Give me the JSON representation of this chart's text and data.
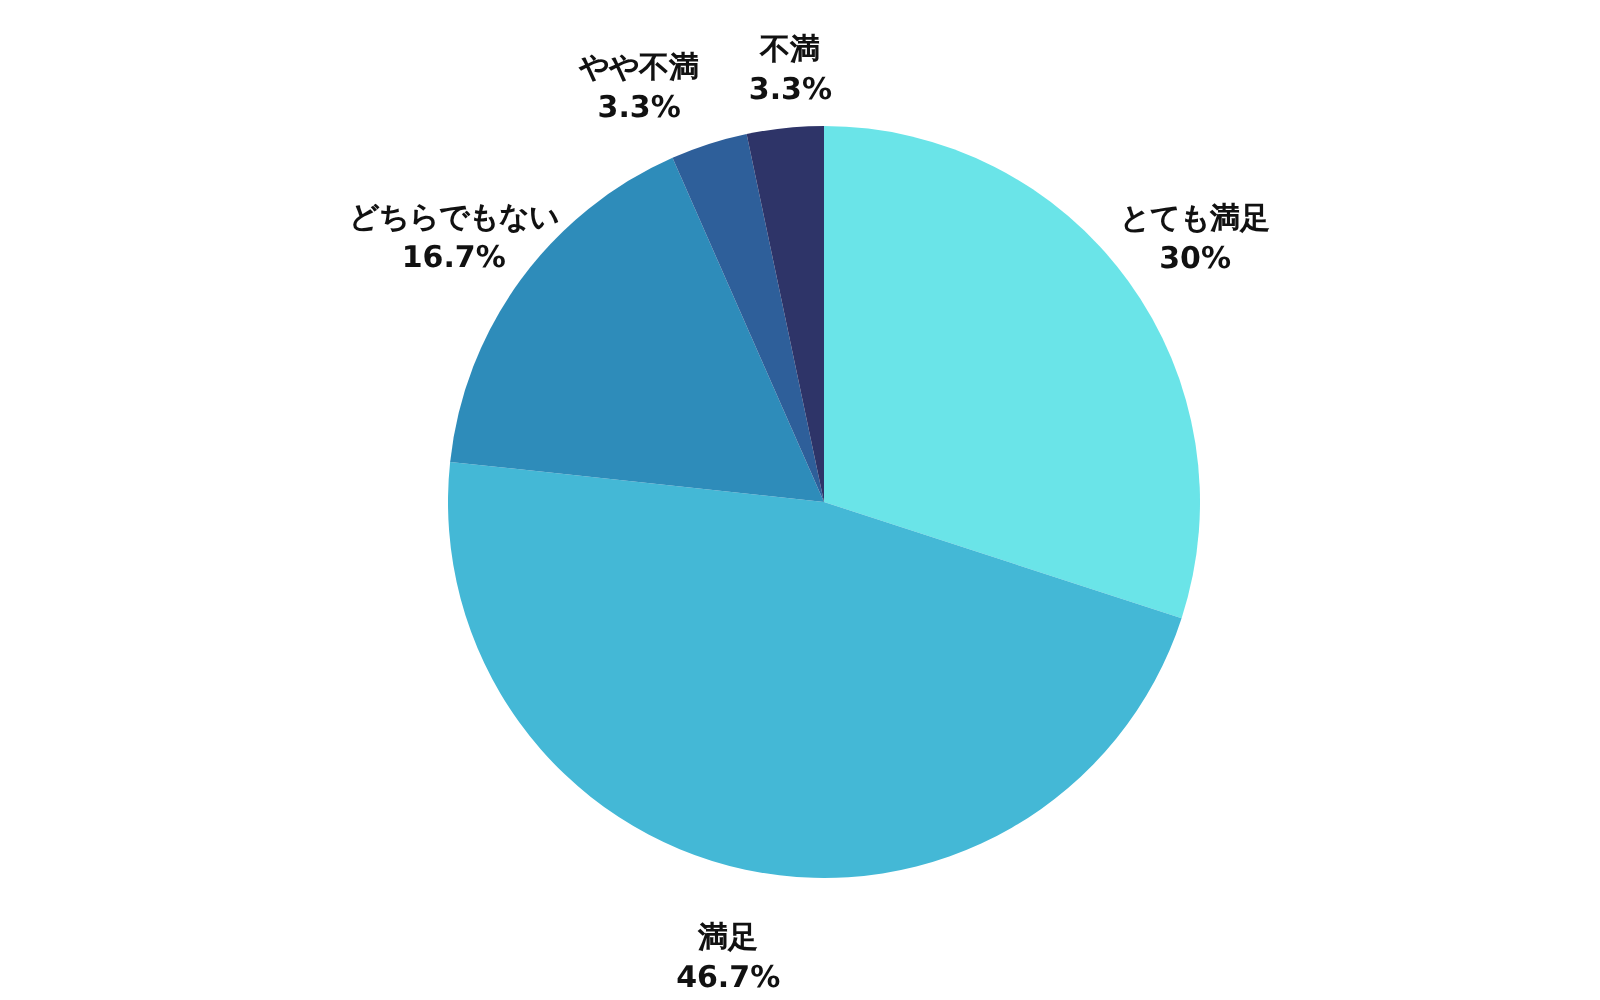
{
  "chart_data": {
    "type": "pie",
    "categories": [
      "とても満足",
      "満足",
      "どちらでもない",
      "やや不満",
      "不満"
    ],
    "values": [
      30,
      46.7,
      16.7,
      3.3,
      3.3
    ],
    "colors": [
      "#6ae4e8",
      "#44b8d6",
      "#2e8cba",
      "#2e5f9a",
      "#2e3468"
    ],
    "value_labels": [
      "30%",
      "46.7%",
      "16.7%",
      "3.3%",
      "3.3%"
    ]
  }
}
